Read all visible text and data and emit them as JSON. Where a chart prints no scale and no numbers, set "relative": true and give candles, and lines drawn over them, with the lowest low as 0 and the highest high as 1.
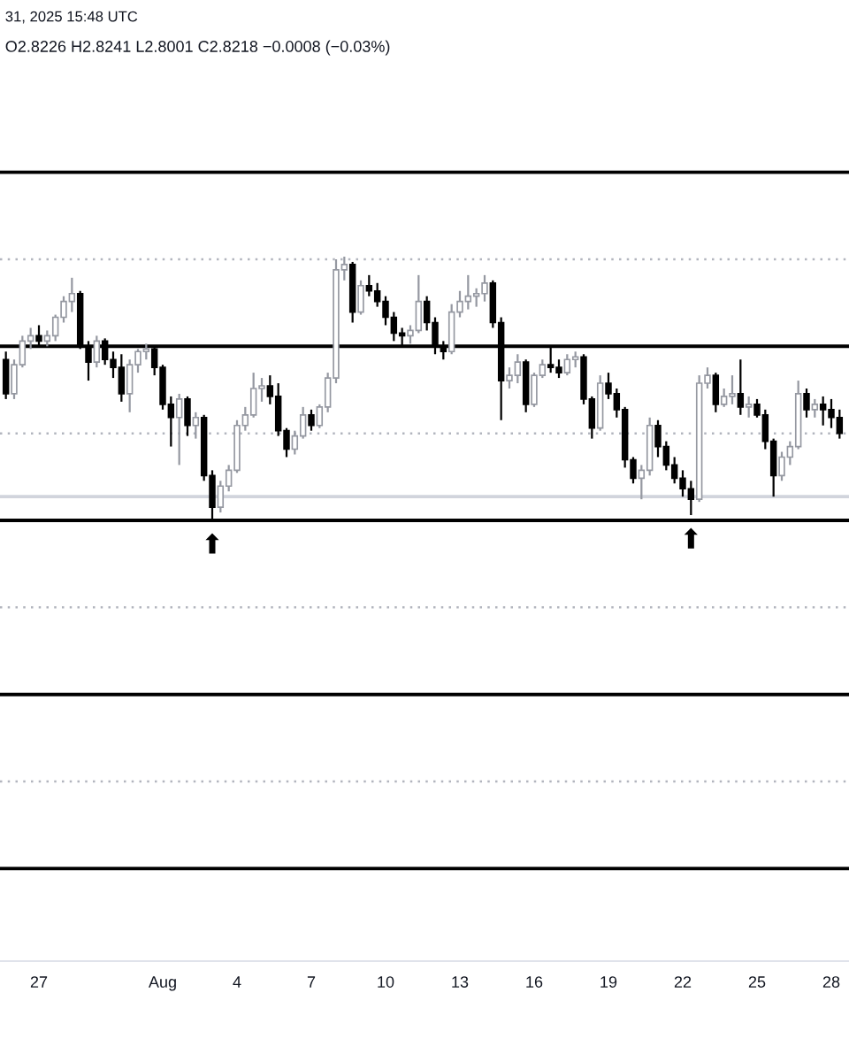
{
  "chart_data": {
    "type": "candlestick",
    "relative": true,
    "title": "31, 2025 15:48 UTC",
    "subtitle": "O2.8226 H2.8241 L2.8001 C2.8218 −0.0008 (−0.03%)",
    "x": [
      "2025-07-25T16:00",
      "2025-07-26T00:00",
      "2025-07-26T08:00",
      "2025-07-26T16:00",
      "2025-07-27T00:00",
      "2025-07-27T08:00",
      "2025-07-27T16:00",
      "2025-07-28T00:00",
      "2025-07-28T08:00",
      "2025-07-28T16:00",
      "2025-07-29T00:00",
      "2025-07-29T08:00",
      "2025-07-29T16:00",
      "2025-07-30T00:00",
      "2025-07-30T08:00",
      "2025-07-30T16:00",
      "2025-07-31T00:00",
      "2025-07-31T08:00",
      "2025-07-31T16:00",
      "2025-08-01T00:00",
      "2025-08-01T08:00",
      "2025-08-01T16:00",
      "2025-08-02T00:00",
      "2025-08-02T08:00",
      "2025-08-02T16:00",
      "2025-08-03T00:00",
      "2025-08-03T08:00",
      "2025-08-03T16:00",
      "2025-08-04T00:00",
      "2025-08-04T08:00",
      "2025-08-04T16:00",
      "2025-08-05T00:00",
      "2025-08-05T08:00",
      "2025-08-05T16:00",
      "2025-08-06T00:00",
      "2025-08-06T08:00",
      "2025-08-06T16:00",
      "2025-08-07T00:00",
      "2025-08-07T08:00",
      "2025-08-07T16:00",
      "2025-08-08T00:00",
      "2025-08-08T08:00",
      "2025-08-08T16:00",
      "2025-08-09T00:00",
      "2025-08-09T08:00",
      "2025-08-09T16:00",
      "2025-08-10T00:00",
      "2025-08-10T08:00",
      "2025-08-10T16:00",
      "2025-08-11T00:00",
      "2025-08-11T08:00",
      "2025-08-11T16:00",
      "2025-08-12T00:00",
      "2025-08-12T08:00",
      "2025-08-12T16:00",
      "2025-08-13T00:00",
      "2025-08-13T08:00",
      "2025-08-13T16:00",
      "2025-08-14T00:00",
      "2025-08-14T08:00",
      "2025-08-14T16:00",
      "2025-08-15T00:00",
      "2025-08-15T08:00",
      "2025-08-15T16:00",
      "2025-08-16T00:00",
      "2025-08-16T08:00",
      "2025-08-16T16:00",
      "2025-08-17T00:00",
      "2025-08-17T08:00",
      "2025-08-17T16:00",
      "2025-08-18T00:00",
      "2025-08-18T08:00",
      "2025-08-18T16:00",
      "2025-08-19T00:00",
      "2025-08-19T08:00",
      "2025-08-19T16:00",
      "2025-08-20T00:00",
      "2025-08-20T08:00",
      "2025-08-20T16:00",
      "2025-08-21T00:00",
      "2025-08-21T08:00",
      "2025-08-21T16:00",
      "2025-08-22T00:00",
      "2025-08-22T08:00",
      "2025-08-22T16:00",
      "2025-08-23T00:00",
      "2025-08-23T08:00",
      "2025-08-23T16:00",
      "2025-08-24T00:00",
      "2025-08-24T08:00",
      "2025-08-24T16:00",
      "2025-08-25T00:00",
      "2025-08-25T08:00",
      "2025-08-25T16:00",
      "2025-08-26T00:00",
      "2025-08-26T08:00",
      "2025-08-26T16:00",
      "2025-08-27T00:00",
      "2025-08-27T08:00",
      "2025-08-27T16:00",
      "2025-08-28T00:00",
      "2025-08-28T08:00"
    ],
    "ohlc": [
      [
        0.61,
        0.64,
        0.46,
        0.48
      ],
      [
        0.48,
        0.61,
        0.46,
        0.59
      ],
      [
        0.59,
        0.7,
        0.58,
        0.68
      ],
      [
        0.68,
        0.73,
        0.65,
        0.7
      ],
      [
        0.7,
        0.74,
        0.66,
        0.68
      ],
      [
        0.68,
        0.72,
        0.66,
        0.7
      ],
      [
        0.7,
        0.78,
        0.68,
        0.77
      ],
      [
        0.77,
        0.85,
        0.75,
        0.83
      ],
      [
        0.83,
        0.92,
        0.79,
        0.86
      ],
      [
        0.86,
        0.87,
        0.65,
        0.66
      ],
      [
        0.66,
        0.68,
        0.53,
        0.6
      ],
      [
        0.6,
        0.7,
        0.58,
        0.68
      ],
      [
        0.68,
        0.69,
        0.59,
        0.61
      ],
      [
        0.61,
        0.64,
        0.54,
        0.58
      ],
      [
        0.58,
        0.63,
        0.45,
        0.48
      ],
      [
        0.48,
        0.61,
        0.41,
        0.59
      ],
      [
        0.59,
        0.65,
        0.56,
        0.64
      ],
      [
        0.64,
        0.67,
        0.61,
        0.65
      ],
      [
        0.65,
        0.66,
        0.55,
        0.58
      ],
      [
        0.58,
        0.59,
        0.42,
        0.44
      ],
      [
        0.44,
        0.47,
        0.28,
        0.39
      ],
      [
        0.39,
        0.48,
        0.21,
        0.46
      ],
      [
        0.46,
        0.47,
        0.32,
        0.36
      ],
      [
        0.36,
        0.41,
        0.31,
        0.39
      ],
      [
        0.39,
        0.4,
        0.15,
        0.17
      ],
      [
        0.17,
        0.19,
        0.0,
        0.05
      ],
      [
        0.05,
        0.15,
        0.03,
        0.13
      ],
      [
        0.13,
        0.21,
        0.11,
        0.19
      ],
      [
        0.19,
        0.38,
        0.18,
        0.36
      ],
      [
        0.36,
        0.43,
        0.34,
        0.4
      ],
      [
        0.4,
        0.56,
        0.39,
        0.5
      ],
      [
        0.5,
        0.54,
        0.45,
        0.51
      ],
      [
        0.51,
        0.55,
        0.44,
        0.47
      ],
      [
        0.47,
        0.52,
        0.32,
        0.34
      ],
      [
        0.34,
        0.35,
        0.24,
        0.27
      ],
      [
        0.27,
        0.34,
        0.25,
        0.32
      ],
      [
        0.32,
        0.43,
        0.31,
        0.4
      ],
      [
        0.4,
        0.42,
        0.34,
        0.36
      ],
      [
        0.36,
        0.44,
        0.35,
        0.43
      ],
      [
        0.43,
        0.56,
        0.41,
        0.54
      ],
      [
        0.54,
        0.99,
        0.52,
        0.95
      ],
      [
        0.95,
        1.0,
        0.91,
        0.97
      ],
      [
        0.97,
        0.98,
        0.75,
        0.79
      ],
      [
        0.79,
        0.91,
        0.78,
        0.89
      ],
      [
        0.89,
        0.93,
        0.85,
        0.87
      ],
      [
        0.87,
        0.9,
        0.81,
        0.83
      ],
      [
        0.83,
        0.85,
        0.74,
        0.77
      ],
      [
        0.77,
        0.79,
        0.68,
        0.71
      ],
      [
        0.71,
        0.73,
        0.66,
        0.7
      ],
      [
        0.7,
        0.74,
        0.67,
        0.72
      ],
      [
        0.72,
        0.93,
        0.71,
        0.83
      ],
      [
        0.83,
        0.85,
        0.72,
        0.75
      ],
      [
        0.75,
        0.77,
        0.63,
        0.66
      ],
      [
        0.66,
        0.68,
        0.61,
        0.64
      ],
      [
        0.64,
        0.82,
        0.63,
        0.79
      ],
      [
        0.79,
        0.87,
        0.77,
        0.83
      ],
      [
        0.83,
        0.93,
        0.8,
        0.85
      ],
      [
        0.85,
        0.88,
        0.81,
        0.86
      ],
      [
        0.86,
        0.93,
        0.83,
        0.9
      ],
      [
        0.9,
        0.91,
        0.73,
        0.75
      ],
      [
        0.75,
        0.77,
        0.38,
        0.53
      ],
      [
        0.53,
        0.58,
        0.5,
        0.55
      ],
      [
        0.55,
        0.63,
        0.52,
        0.6
      ],
      [
        0.6,
        0.61,
        0.41,
        0.44
      ],
      [
        0.44,
        0.56,
        0.43,
        0.55
      ],
      [
        0.55,
        0.61,
        0.54,
        0.59
      ],
      [
        0.59,
        0.66,
        0.56,
        0.58
      ],
      [
        0.58,
        0.61,
        0.54,
        0.56
      ],
      [
        0.56,
        0.63,
        0.55,
        0.61
      ],
      [
        0.61,
        0.64,
        0.58,
        0.62
      ],
      [
        0.62,
        0.63,
        0.44,
        0.46
      ],
      [
        0.46,
        0.47,
        0.31,
        0.35
      ],
      [
        0.35,
        0.55,
        0.34,
        0.52
      ],
      [
        0.52,
        0.56,
        0.46,
        0.48
      ],
      [
        0.48,
        0.5,
        0.39,
        0.42
      ],
      [
        0.42,
        0.43,
        0.2,
        0.23
      ],
      [
        0.23,
        0.24,
        0.14,
        0.16
      ],
      [
        0.16,
        0.21,
        0.08,
        0.19
      ],
      [
        0.19,
        0.39,
        0.17,
        0.36
      ],
      [
        0.36,
        0.38,
        0.24,
        0.28
      ],
      [
        0.28,
        0.3,
        0.19,
        0.21
      ],
      [
        0.21,
        0.24,
        0.14,
        0.16
      ],
      [
        0.16,
        0.19,
        0.09,
        0.12
      ],
      [
        0.12,
        0.15,
        0.02,
        0.08
      ],
      [
        0.08,
        0.55,
        0.07,
        0.52
      ],
      [
        0.52,
        0.58,
        0.5,
        0.55
      ],
      [
        0.55,
        0.56,
        0.41,
        0.44
      ],
      [
        0.44,
        0.5,
        0.43,
        0.47
      ],
      [
        0.47,
        0.55,
        0.44,
        0.48
      ],
      [
        0.48,
        0.61,
        0.4,
        0.43
      ],
      [
        0.43,
        0.47,
        0.39,
        0.44
      ],
      [
        0.44,
        0.46,
        0.39,
        0.4
      ],
      [
        0.4,
        0.42,
        0.27,
        0.3
      ],
      [
        0.3,
        0.31,
        0.09,
        0.17
      ],
      [
        0.17,
        0.26,
        0.15,
        0.24
      ],
      [
        0.24,
        0.3,
        0.21,
        0.28
      ],
      [
        0.28,
        0.53,
        0.27,
        0.48
      ],
      [
        0.48,
        0.5,
        0.39,
        0.42
      ],
      [
        0.42,
        0.46,
        0.39,
        0.44
      ],
      [
        0.44,
        0.47,
        0.36,
        0.42
      ],
      [
        0.42,
        0.46,
        0.35,
        0.39
      ],
      [
        0.39,
        0.42,
        0.31,
        0.33
      ]
    ],
    "colors": [
      "#000000",
      "#9598a1",
      "#9598a1",
      "#9598a1",
      "#000000",
      "#9598a1",
      "#9598a1",
      "#9598a1",
      "#9598a1",
      "#000000",
      "#000000",
      "#9598a1",
      "#000000",
      "#000000",
      "#000000",
      "#9598a1",
      "#9598a1",
      "#9598a1",
      "#000000",
      "#000000",
      "#000000",
      "#9598a1",
      "#000000",
      "#9598a1",
      "#000000",
      "#000000",
      "#9598a1",
      "#9598a1",
      "#9598a1",
      "#9598a1",
      "#9598a1",
      "#9598a1",
      "#000000",
      "#000000",
      "#000000",
      "#9598a1",
      "#9598a1",
      "#000000",
      "#9598a1",
      "#9598a1",
      "#9598a1",
      "#9598a1",
      "#000000",
      "#9598a1",
      "#000000",
      "#000000",
      "#000000",
      "#000000",
      "#000000",
      "#9598a1",
      "#9598a1",
      "#000000",
      "#000000",
      "#000000",
      "#9598a1",
      "#9598a1",
      "#9598a1",
      "#9598a1",
      "#9598a1",
      "#000000",
      "#000000",
      "#9598a1",
      "#9598a1",
      "#000000",
      "#9598a1",
      "#9598a1",
      "#000000",
      "#000000",
      "#9598a1",
      "#9598a1",
      "#000000",
      "#000000",
      "#9598a1",
      "#000000",
      "#000000",
      "#000000",
      "#000000",
      "#9598a1",
      "#9598a1",
      "#000000",
      "#000000",
      "#000000",
      "#000000",
      "#000000",
      "#9598a1",
      "#9598a1",
      "#000000",
      "#9598a1",
      "#9598a1",
      "#000000",
      "#9598a1",
      "#000000",
      "#000000",
      "#000000",
      "#9598a1",
      "#9598a1",
      "#9598a1",
      "#000000",
      "#9598a1",
      "#000000",
      "#000000",
      "#000000"
    ],
    "xlim": [
      "2025-07-25T10:17",
      "2025-08-28T17:09"
    ],
    "xticks": [
      {
        "value": "2025-07-27",
        "label": "27"
      },
      {
        "value": "2025-08-01",
        "label": "Aug"
      },
      {
        "value": "2025-08-04",
        "label": "4"
      },
      {
        "value": "2025-08-07",
        "label": "7"
      },
      {
        "value": "2025-08-10",
        "label": "10"
      },
      {
        "value": "2025-08-13",
        "label": "13"
      },
      {
        "value": "2025-08-16",
        "label": "16"
      },
      {
        "value": "2025-08-19",
        "label": "19"
      },
      {
        "value": "2025-08-22",
        "label": "22"
      },
      {
        "value": "2025-08-25",
        "label": "25"
      },
      {
        "value": "2025-08-28",
        "label": "28"
      }
    ],
    "tick_labels": "x",
    "ref_lines": [
      {
        "axis": "y",
        "value": 1.32,
        "color": "#000000",
        "line_style": "solid"
      },
      {
        "axis": "y",
        "value": 0.99,
        "color": "#b2b5be",
        "line_style": "dotted"
      },
      {
        "axis": "y",
        "value": 0.66,
        "color": "#000000",
        "line_style": "solid"
      },
      {
        "axis": "y",
        "value": 0.33,
        "color": "#b2b5be",
        "line_style": "dotted"
      },
      {
        "axis": "y",
        "value": 0.09,
        "color": "#d1d4dc",
        "line_style": "solid"
      },
      {
        "axis": "y",
        "value": 0.0,
        "color": "#000000",
        "line_style": "solid"
      },
      {
        "axis": "y",
        "value": -0.33,
        "color": "#b2b5be",
        "line_style": "dotted"
      },
      {
        "axis": "y",
        "value": -0.66,
        "color": "#000000",
        "line_style": "solid"
      },
      {
        "axis": "y",
        "value": -0.99,
        "color": "#b2b5be",
        "line_style": "dotted"
      },
      {
        "axis": "y",
        "value": -1.32,
        "color": "#000000",
        "line_style": "solid"
      }
    ],
    "annotations": [
      {
        "text": "⬆",
        "x": "2025-08-03T00:00",
        "y": 0.0
      },
      {
        "text": "⬆",
        "x": "2025-08-22T08:00",
        "y": 0.02
      }
    ]
  }
}
